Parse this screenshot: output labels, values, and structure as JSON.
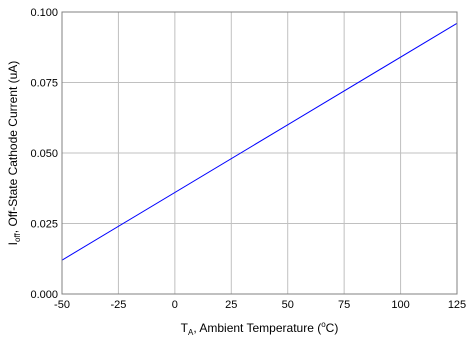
{
  "chart_data": {
    "type": "line",
    "title": "",
    "xlabel": {
      "symbol": "T",
      "subscript": "A",
      "text": ",  Ambient  Temperature (",
      "superscript": "o",
      "suffix": "C)"
    },
    "ylabel": {
      "symbol": "I",
      "subscript": "off",
      "text": ",  Off-State Cathode Current  (uA)"
    },
    "xlim": [
      -50,
      125
    ],
    "ylim": [
      0.0,
      0.1
    ],
    "x_ticks": [
      "-50",
      "-25",
      "0",
      "25",
      "50",
      "75",
      "100",
      "125"
    ],
    "y_ticks": [
      "0.000",
      "0.025",
      "0.050",
      "0.075",
      "0.100"
    ],
    "grid": true,
    "series": [
      {
        "color": "#0000ff",
        "x": [
          -50,
          125
        ],
        "y": [
          0.012,
          0.096
        ]
      }
    ]
  }
}
